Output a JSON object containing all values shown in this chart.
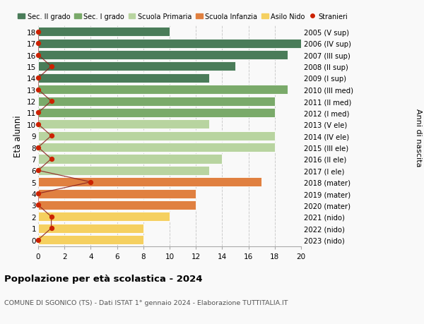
{
  "ages": [
    18,
    17,
    16,
    15,
    14,
    13,
    12,
    11,
    10,
    9,
    8,
    7,
    6,
    5,
    4,
    3,
    2,
    1,
    0
  ],
  "bar_values": [
    10,
    20,
    19,
    15,
    13,
    19,
    18,
    18,
    13,
    18,
    18,
    14,
    13,
    17,
    12,
    12,
    10,
    8,
    8
  ],
  "bar_colors": [
    "#4a7c59",
    "#4a7c59",
    "#4a7c59",
    "#4a7c59",
    "#4a7c59",
    "#7aaa6a",
    "#7aaa6a",
    "#7aaa6a",
    "#b8d4a0",
    "#b8d4a0",
    "#b8d4a0",
    "#b8d4a0",
    "#b8d4a0",
    "#e08040",
    "#e08040",
    "#e08040",
    "#f5d060",
    "#f5d060",
    "#f5d060"
  ],
  "right_labels": [
    "2005 (V sup)",
    "2006 (IV sup)",
    "2007 (III sup)",
    "2008 (II sup)",
    "2009 (I sup)",
    "2010 (III med)",
    "2011 (II med)",
    "2012 (I med)",
    "2013 (V ele)",
    "2014 (IV ele)",
    "2015 (III ele)",
    "2016 (II ele)",
    "2017 (I ele)",
    "2018 (mater)",
    "2019 (mater)",
    "2020 (mater)",
    "2021 (nido)",
    "2022 (nido)",
    "2023 (nido)"
  ],
  "stranieri_values": [
    0,
    0,
    0,
    1,
    0,
    0,
    1,
    0,
    0,
    1,
    0,
    1,
    0,
    4,
    0,
    0,
    1,
    1,
    0
  ],
  "legend_labels": [
    "Sec. II grado",
    "Sec. I grado",
    "Scuola Primaria",
    "Scuola Infanzia",
    "Asilo Nido",
    "Stranieri"
  ],
  "legend_colors": [
    "#4a7c59",
    "#7aaa6a",
    "#b8d4a0",
    "#e08040",
    "#f5d060",
    "#cc2200"
  ],
  "title": "Popolazione per età scolastica - 2024",
  "subtitle": "COMUNE DI SGONICO (TS) - Dati ISTAT 1° gennaio 2024 - Elaborazione TUTTITALIA.IT",
  "ylabel_left": "Età alunni",
  "ylabel_right": "Anni di nascita",
  "xlim": [
    0,
    20
  ],
  "xticks": [
    0,
    2,
    4,
    6,
    8,
    10,
    12,
    14,
    16,
    18,
    20
  ],
  "background_color": "#f9f9f9"
}
